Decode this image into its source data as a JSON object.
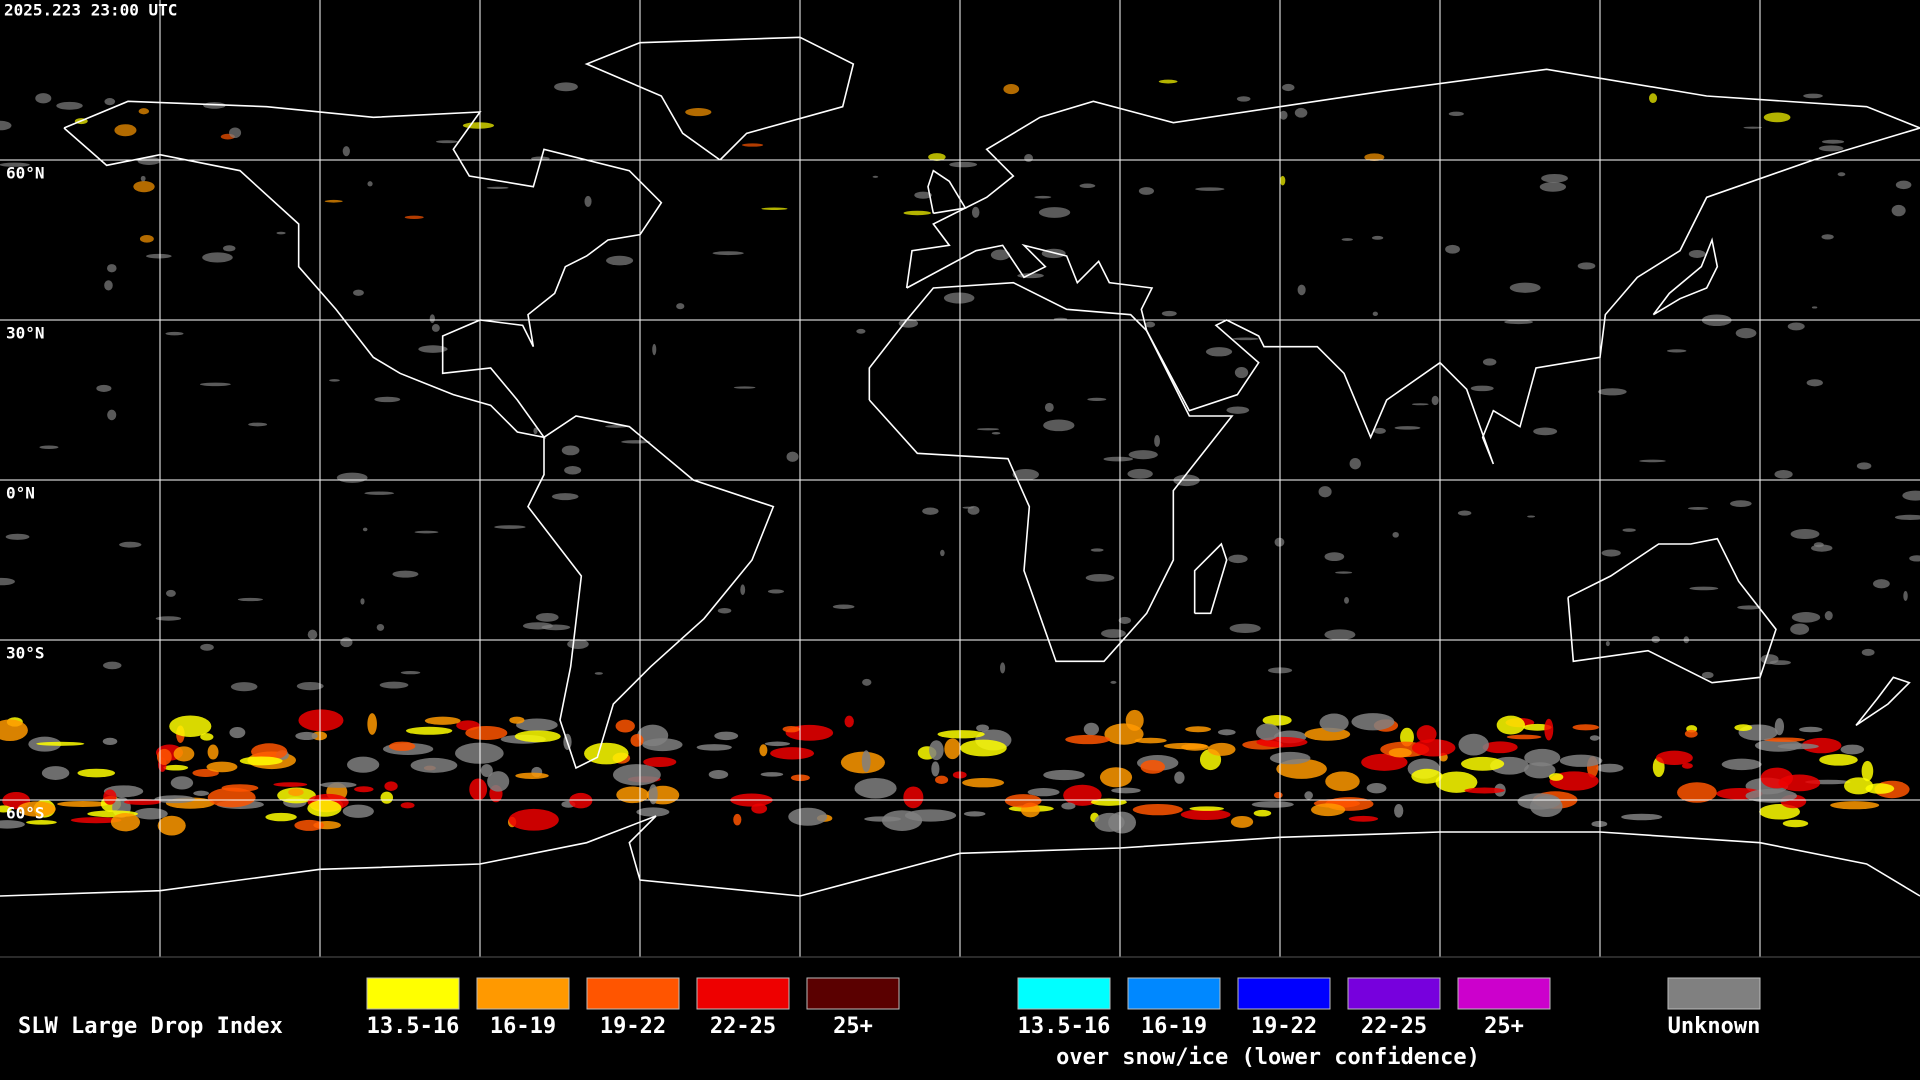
{
  "header": {
    "timestamp": "2025.223 23:00 UTC"
  },
  "map": {
    "lat_labels": [
      "60°N",
      "30°N",
      "0°N",
      "30°S",
      "60°S"
    ]
  },
  "legend": {
    "title": "SLW Large Drop Index",
    "liquid": [
      {
        "label": "13.5-16",
        "color": "#ffff00"
      },
      {
        "label": "16-19",
        "color": "#ff9900"
      },
      {
        "label": "19-22",
        "color": "#ff5500"
      },
      {
        "label": "22-25",
        "color": "#ee0000"
      },
      {
        "label": "25+",
        "color": "#5a0000"
      }
    ],
    "snow_ice": [
      {
        "label": "13.5-16",
        "color": "#00ffff"
      },
      {
        "label": "16-19",
        "color": "#0088ff"
      },
      {
        "label": "19-22",
        "color": "#0000ff"
      },
      {
        "label": "22-25",
        "color": "#7700dd"
      },
      {
        "label": "25+",
        "color": "#cc00cc"
      }
    ],
    "snow_ice_note": "over snow/ice (lower confidence)",
    "unknown": {
      "label": "Unknown",
      "color": "#808080"
    }
  }
}
